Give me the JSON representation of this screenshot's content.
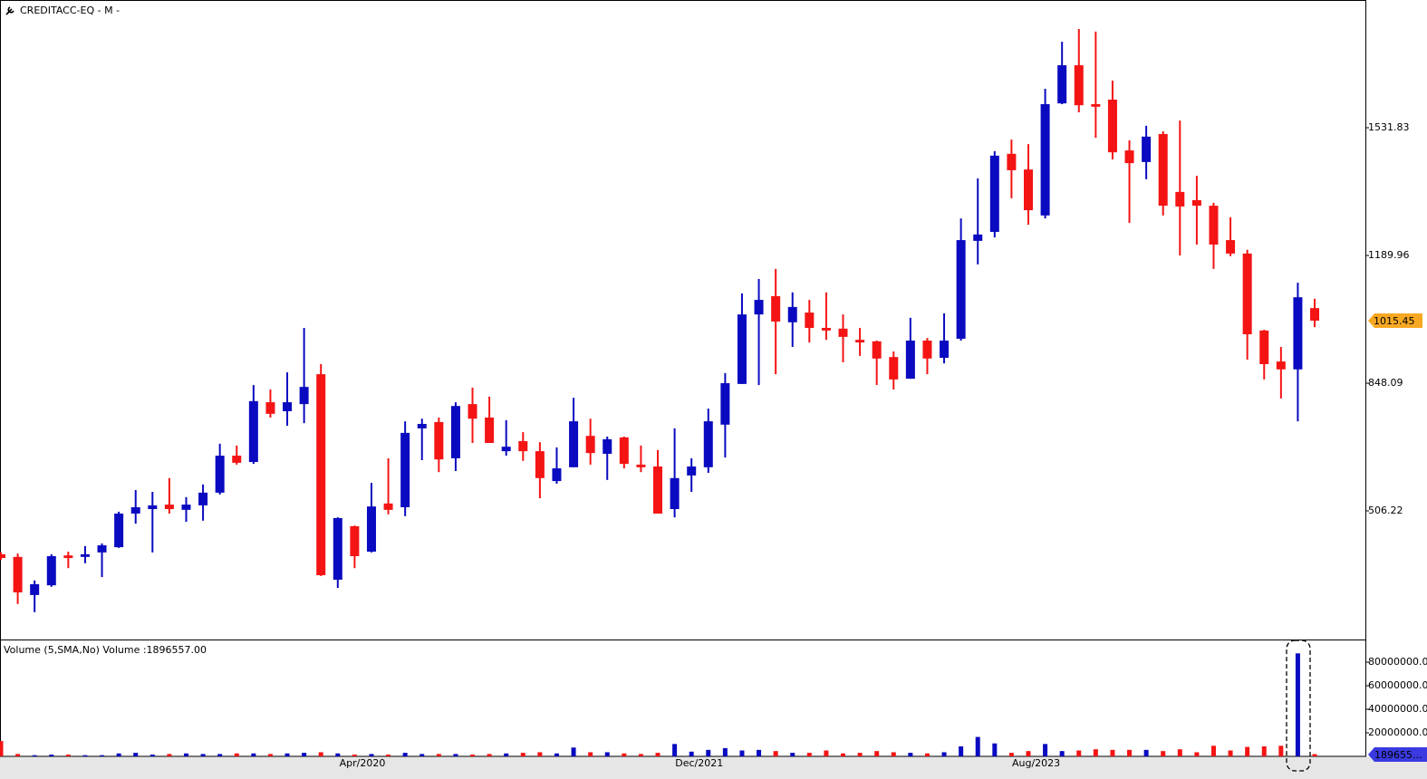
{
  "chart_data": [
    {
      "type": "candlestick",
      "title": "CREDITACC-EQ - M -",
      "categories": [
        null,
        null,
        null,
        null,
        null,
        null,
        null,
        null,
        null,
        null,
        null,
        null,
        null,
        null,
        null,
        null,
        null,
        null,
        null,
        null,
        null,
        null,
        "Apr/2020",
        null,
        null,
        null,
        null,
        null,
        null,
        null,
        null,
        null,
        null,
        null,
        null,
        null,
        null,
        null,
        null,
        null,
        null,
        null,
        "Dec/2021",
        null,
        null,
        null,
        null,
        null,
        null,
        null,
        null,
        null,
        null,
        null,
        null,
        null,
        null,
        null,
        null,
        null,
        null,
        null,
        "Aug/2023",
        null,
        null,
        null,
        null,
        null,
        null,
        null,
        null,
        null,
        null,
        null,
        null,
        null,
        null,
        null,
        null
      ],
      "open": [
        390,
        383,
        281,
        307,
        387,
        383,
        395,
        409,
        499,
        511,
        523,
        509,
        521,
        555,
        654,
        637,
        797,
        773,
        792,
        872,
        322,
        465,
        397,
        526,
        516,
        727,
        744,
        647,
        792,
        756,
        666,
        693,
        666,
        586,
        623,
        707,
        659,
        703,
        630,
        625,
        511,
        601,
        623,
        737,
        846,
        1032,
        1081,
        1011,
        1037,
        996,
        994,
        964,
        960,
        918,
        860,
        962,
        916,
        967,
        1229,
        1253,
        1462,
        1420,
        1297,
        1597,
        1699,
        1595,
        1607,
        1471,
        1440,
        1515,
        1360,
        1338,
        1323,
        1231,
        1195,
        989,
        906,
        885,
        1049
      ],
      "high": [
        395,
        392,
        320,
        390,
        397,
        412,
        419,
        504,
        562,
        557,
        594,
        543,
        577,
        686,
        681,
        843,
        831,
        877,
        996,
        899,
        489,
        467,
        581,
        647,
        746,
        753,
        756,
        797,
        836,
        812,
        749,
        717,
        690,
        676,
        809,
        753,
        705,
        705,
        681,
        669,
        727,
        647,
        780,
        875,
        1088,
        1127,
        1154,
        1091,
        1071,
        1091,
        1032,
        996,
        962,
        933,
        1023,
        969,
        1035,
        1289,
        1396,
        1469,
        1500,
        1488,
        1636,
        1762,
        1796,
        1789,
        1658,
        1498,
        1537,
        1522,
        1551,
        1403,
        1331,
        1292,
        1205,
        991,
        945,
        1117,
        1074
      ],
      "low": [
        375,
        257,
        235,
        303,
        353,
        366,
        329,
        407,
        472,
        395,
        499,
        477,
        480,
        550,
        630,
        632,
        756,
        734,
        741,
        332,
        300,
        353,
        395,
        497,
        492,
        642,
        610,
        613,
        688,
        688,
        654,
        640,
        540,
        579,
        623,
        630,
        589,
        620,
        610,
        499,
        489,
        557,
        608,
        649,
        846,
        843,
        872,
        945,
        957,
        964,
        904,
        921,
        843,
        831,
        860,
        872,
        901,
        962,
        1166,
        1238,
        1343,
        1272,
        1289,
        1595,
        1573,
        1505,
        1447,
        1277,
        1394,
        1297,
        1190,
        1219,
        1154,
        1188,
        911,
        858,
        807,
        746,
        998
      ],
      "close": [
        380,
        288,
        310,
        385,
        380,
        390,
        414,
        499,
        516,
        521,
        511,
        523,
        555,
        654,
        635,
        800,
        766,
        797,
        838,
        334,
        487,
        385,
        518,
        509,
        715,
        739,
        644,
        787,
        753,
        688,
        678,
        666,
        594,
        620,
        746,
        661,
        698,
        632,
        623,
        499,
        594,
        625,
        746,
        848,
        1032,
        1071,
        1013,
        1052,
        996,
        989,
        972,
        957,
        914,
        858,
        962,
        914,
        962,
        1231,
        1246,
        1457,
        1418,
        1311,
        1595,
        1699,
        1592,
        1588,
        1466,
        1437,
        1508,
        1323,
        1321,
        1323,
        1219,
        1195,
        979,
        899,
        885,
        1078,
        1015.45
      ],
      "up_color": "#0a0ac0",
      "down_color": "#f41414",
      "ylim": [
        161.9,
        1873.7
      ],
      "yticks": [
        506.22,
        848.09,
        1189.96,
        1531.83
      ],
      "last_color": "#f7a823"
    },
    {
      "type": "bar",
      "title": "Volume (5,SMA,No) Volume :1896557.00",
      "values": [
        13000000,
        2000000,
        1000000,
        1500000,
        1500000,
        1000000,
        1000000,
        2500000,
        3000000,
        1500000,
        2000000,
        2500000,
        2000000,
        2000000,
        2500000,
        2500000,
        2000000,
        2500000,
        3000000,
        3500000,
        2500000,
        1500000,
        2000000,
        1500000,
        3000000,
        2000000,
        2000000,
        2000000,
        1500000,
        2000000,
        2500000,
        3000000,
        3500000,
        2500000,
        7500000,
        3500000,
        3500000,
        2500000,
        2000000,
        3000000,
        10500000,
        4000000,
        5500000,
        7000000,
        5000000,
        5500000,
        4500000,
        3000000,
        3000000,
        5000000,
        2500000,
        3000000,
        4500000,
        3500000,
        3000000,
        2500000,
        3500000,
        8500000,
        16500000,
        11000000,
        3000000,
        4500000,
        10500000,
        4500000,
        5000000,
        6000000,
        5500000,
        5500000,
        5500000,
        4500000,
        6000000,
        3500000,
        9000000,
        5000000,
        8000000,
        8500000,
        9000000,
        87500000,
        1896557
      ],
      "ylim": [
        0,
        98500000
      ],
      "yticks": [
        {
          "value": 20000000,
          "label": "20000000.0"
        },
        {
          "value": 40000000,
          "label": "40000000.0"
        },
        {
          "value": 60000000,
          "label": "60000000.0"
        },
        {
          "value": 80000000,
          "label": "80000000.0"
        }
      ],
      "last_label": "189655...",
      "last_color": "#3a3ae0"
    }
  ]
}
